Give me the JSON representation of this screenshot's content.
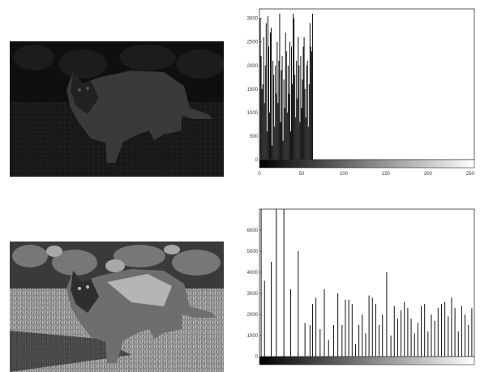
{
  "images": [
    {
      "description_icon": "dark-cat-photo-icon"
    },
    {
      "description_icon": "equalized-cat-photo-icon"
    }
  ],
  "chart_data": [
    {
      "type": "bar",
      "title": "",
      "xlabel": "",
      "ylabel": "",
      "xlim": [
        0,
        255
      ],
      "ylim": [
        0,
        3200
      ],
      "xticks": [
        "0",
        "50",
        "100",
        "150",
        "200",
        "250"
      ],
      "yticks": [
        "0",
        "500",
        "1000",
        "1500",
        "2000",
        "2500",
        "3000"
      ],
      "x": [
        1,
        2,
        3,
        4,
        5,
        6,
        7,
        8,
        9,
        10,
        11,
        12,
        13,
        14,
        15,
        16,
        17,
        18,
        19,
        20,
        21,
        22,
        23,
        24,
        25,
        26,
        27,
        28,
        29,
        30,
        31,
        32,
        33,
        34,
        35,
        36,
        37,
        38,
        39,
        40,
        41,
        42,
        43,
        44,
        45,
        46,
        47,
        48,
        49,
        50,
        51,
        52,
        53,
        54,
        55,
        56,
        57,
        58,
        59,
        60,
        61,
        62,
        63
      ],
      "values": [
        3000,
        2200,
        1500,
        1600,
        2600,
        1200,
        2000,
        2900,
        600,
        3050,
        2400,
        1000,
        2700,
        2800,
        300,
        2100,
        1800,
        700,
        2000,
        1400,
        2500,
        1200,
        2100,
        3100,
        800,
        1900,
        2200,
        400,
        1700,
        1100,
        2700,
        2300,
        1000,
        2000,
        1400,
        2500,
        600,
        2400,
        1600,
        3100,
        3000,
        1800,
        900,
        2100,
        1300,
        2600,
        2000,
        800,
        2200,
        1100,
        1700,
        2400,
        2600,
        1500,
        900,
        2000,
        2100,
        700,
        1600,
        2900,
        2400,
        2300,
        3100
      ]
    },
    {
      "type": "bar",
      "title": "",
      "xlabel": "",
      "ylabel": "",
      "xlim": [
        0,
        255
      ],
      "ylim": [
        0,
        7000
      ],
      "yticks": [
        "0",
        "1000",
        "2000",
        "3000",
        "4000",
        "5000",
        "6000"
      ],
      "x": [
        2,
        6,
        14,
        20,
        29,
        37,
        46,
        54,
        60,
        63,
        67,
        72,
        77,
        82,
        88,
        93,
        98,
        102,
        106,
        110,
        114,
        118,
        122,
        126,
        130,
        134,
        138,
        142,
        146,
        151,
        156,
        160,
        164,
        168,
        172,
        176,
        180,
        184,
        188,
        192,
        196,
        200,
        204,
        208,
        212,
        216,
        220,
        224,
        228,
        232,
        236,
        240,
        244,
        248,
        252
      ],
      "values": [
        7000,
        3600,
        4500,
        7000,
        7000,
        3200,
        5000,
        1600,
        1500,
        2500,
        2800,
        1300,
        3200,
        800,
        1500,
        3000,
        1500,
        2700,
        2700,
        2500,
        600,
        1500,
        2000,
        1100,
        2900,
        2800,
        2500,
        1500,
        2000,
        4000,
        1000,
        2400,
        1800,
        2200,
        2600,
        2300,
        1800,
        1100,
        1600,
        2400,
        2500,
        1200,
        2000,
        1700,
        2300,
        2500,
        2600,
        1900,
        2800,
        2300,
        1200,
        2400,
        2000,
        1500,
        2300
      ]
    }
  ]
}
